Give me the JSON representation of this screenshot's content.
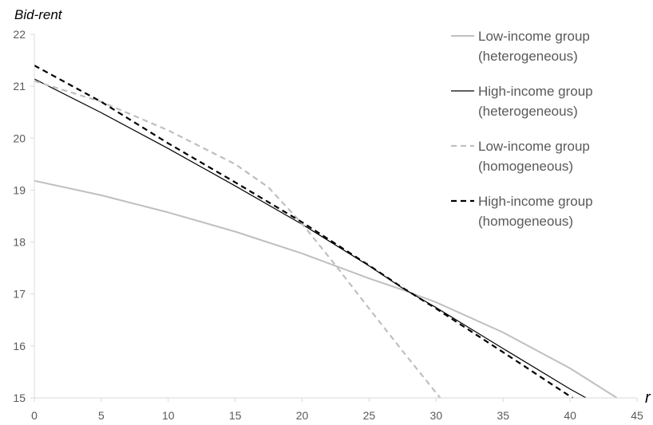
{
  "chart_data": {
    "type": "line",
    "title": "",
    "xlabel": "r",
    "ylabel": "Bid-rent",
    "xlim": [
      0,
      45
    ],
    "ylim": [
      15,
      22
    ],
    "x_ticks": [
      0,
      5,
      10,
      15,
      20,
      25,
      30,
      35,
      40,
      45
    ],
    "y_ticks": [
      15,
      16,
      17,
      18,
      19,
      20,
      21,
      22
    ],
    "grid": false,
    "legend_position": "right",
    "series": [
      {
        "name_line1": "Low-income group",
        "name_line2": "(heterogeneous)",
        "color": "#bfbfbf",
        "style": "solid",
        "x": [
          0,
          5,
          10,
          15,
          20,
          25,
          27.5,
          30,
          35,
          40,
          43.5
        ],
        "y": [
          19.18,
          18.9,
          18.57,
          18.2,
          17.78,
          17.3,
          17.08,
          16.84,
          16.26,
          15.57,
          15.0
        ]
      },
      {
        "name_line1": "High-income group",
        "name_line2": "(heterogeneous)",
        "color": "#000000",
        "style": "solid",
        "x": [
          0,
          5,
          10,
          15,
          20,
          25,
          27.5,
          30,
          35,
          40,
          41.2
        ],
        "y": [
          21.14,
          20.49,
          19.8,
          19.08,
          18.34,
          17.54,
          17.11,
          16.74,
          15.95,
          15.17,
          15.0
        ]
      },
      {
        "name_line1": "Low-income group",
        "name_line2": "(homogeneous)",
        "color": "#bfbfbf",
        "style": "dashed",
        "x": [
          0,
          5,
          10,
          15,
          17.5,
          20,
          22.5,
          25,
          27.5,
          30.3
        ],
        "y": [
          21.1,
          20.7,
          20.15,
          19.5,
          19.05,
          18.35,
          17.55,
          16.72,
          15.9,
          15.0
        ]
      },
      {
        "name_line1": "High-income group",
        "name_line2": "(homogeneous)",
        "color": "#000000",
        "style": "dashed",
        "x": [
          0,
          5,
          10,
          15,
          20,
          25,
          27.5,
          30,
          35,
          40,
          40.2
        ],
        "y": [
          21.4,
          20.7,
          19.9,
          19.15,
          18.38,
          17.55,
          17.12,
          16.72,
          15.88,
          15.03,
          15.0
        ]
      }
    ]
  }
}
